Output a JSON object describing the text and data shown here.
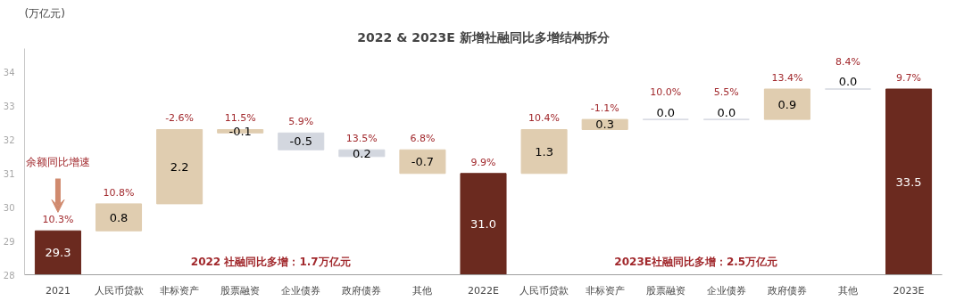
{
  "chart_data": {
    "type": "bar",
    "title": "2022 & 2023E 新增社融同比多增结构拆分",
    "categories": [
      "2021",
      "人民币贷款",
      "非标资产",
      "股票融资",
      "企业债券",
      "政府债券",
      "其他",
      "2022E",
      "人民币贷款",
      "非标资产",
      "股票融资",
      "企业债券",
      "政府债券",
      "其他",
      "2023E"
    ],
    "values": [
      29.3,
      0.8,
      2.2,
      -0.1,
      -0.5,
      0.2,
      -0.7,
      31.0,
      1.3,
      0.3,
      0.0,
      0.0,
      0.9,
      0.0,
      33.5
    ],
    "value_labels": [
      "29.3",
      "0.8",
      "2.2",
      "-0.1",
      "-0.5",
      "0.2",
      "-0.7",
      "31.0",
      "1.3",
      "0.3",
      "0.0",
      "0.0",
      "0.9",
      "0.0",
      "33.5"
    ],
    "base": [
      null,
      29.3,
      30.1,
      32.3,
      32.2,
      31.5,
      31.7,
      null,
      31.0,
      32.3,
      32.6,
      32.6,
      32.6,
      33.5,
      null
    ],
    "colors": [
      "#6b2a1f",
      "#e0cdb0",
      "#e0cdb0",
      "#e0cdb0",
      "#d3d7df",
      "#d3d7df",
      "#e0cdb0",
      "#6b2a1f",
      "#e0cdb0",
      "#e0cdb0",
      "#d3d7df",
      "#d3d7df",
      "#e0cdb0",
      "#d3d7df",
      "#6b2a1f"
    ],
    "ylim": [
      28,
      34.7
    ],
    "yticks": [
      28,
      29,
      30,
      31,
      32,
      33,
      34
    ],
    "grid": false,
    "annotations": [
      "(万亿元)",
      "余额同比增速",
      "10.3%",
      "10.8%",
      "-2.6%",
      "11.5%",
      "5.9%",
      "13.5%",
      "6.8%",
      "9.9%",
      "10.4%",
      "-1.1%",
      "10.0%",
      "5.5%",
      "13.4%",
      "8.4%",
      "9.7%",
      "2022 社融同比多增：1.7万亿元",
      "2023E社融同比多增：2.5万亿元"
    ]
  }
}
